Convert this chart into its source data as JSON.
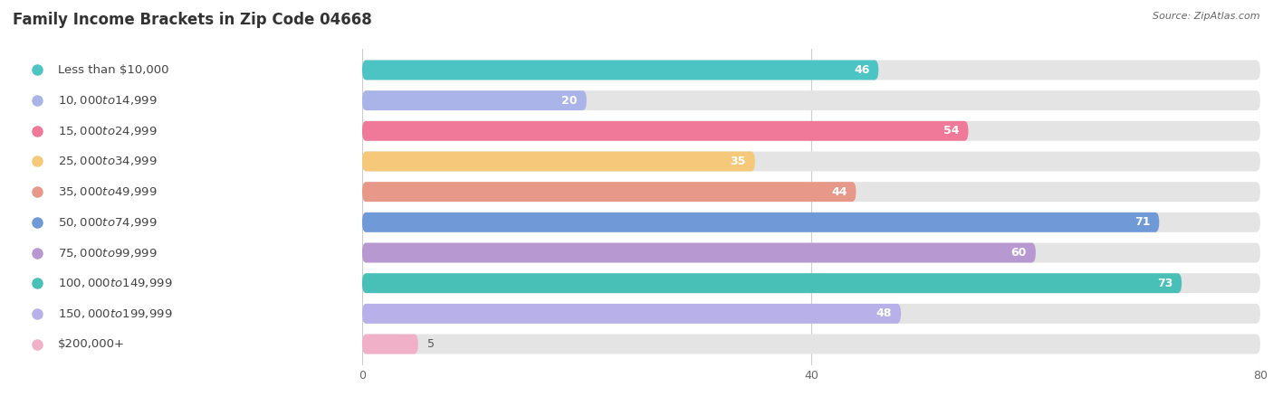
{
  "title": "Family Income Brackets in Zip Code 04668",
  "source": "Source: ZipAtlas.com",
  "categories": [
    "Less than $10,000",
    "$10,000 to $14,999",
    "$15,000 to $24,999",
    "$25,000 to $34,999",
    "$35,000 to $49,999",
    "$50,000 to $74,999",
    "$75,000 to $99,999",
    "$100,000 to $149,999",
    "$150,000 to $199,999",
    "$200,000+"
  ],
  "values": [
    46,
    20,
    54,
    35,
    44,
    71,
    60,
    73,
    48,
    5
  ],
  "bar_colors": [
    "#4dc4c4",
    "#aab4e8",
    "#f07898",
    "#f5c87a",
    "#e89888",
    "#7099d8",
    "#b898d0",
    "#48c0b8",
    "#b8b0e8",
    "#f0b0c8"
  ],
  "data_xlim": [
    0,
    80
  ],
  "xticks": [
    0,
    40,
    80
  ],
  "bar_bg_color": "#e4e4e4",
  "bg_color": "#f7f7f7",
  "title_fontsize": 12,
  "label_fontsize": 9.5,
  "value_fontsize": 9,
  "source_fontsize": 8,
  "bar_height": 0.65,
  "value_threshold": 12
}
